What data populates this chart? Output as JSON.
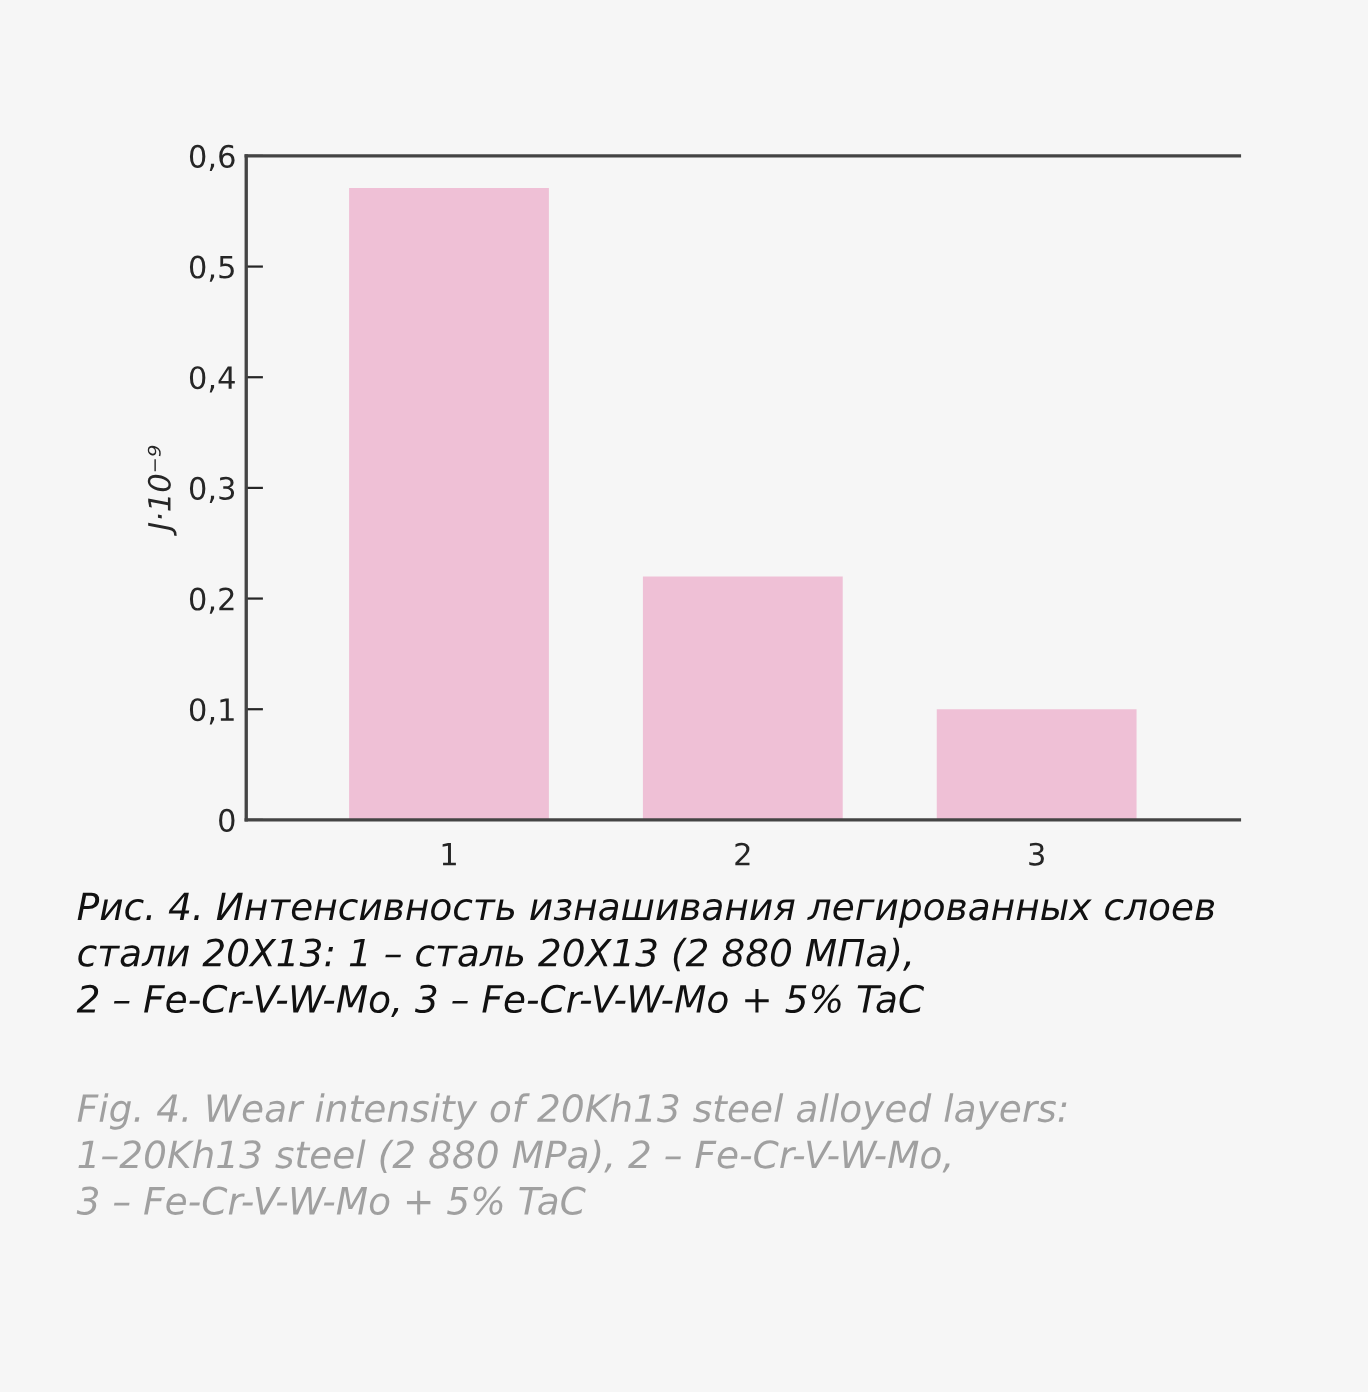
{
  "chart_data": {
    "type": "bar",
    "ylabel": "J·10⁻⁹",
    "categories": [
      "1",
      "2",
      "3"
    ],
    "values": [
      0.571,
      0.22,
      0.1
    ],
    "color": "#efc0d6",
    "ylim": [
      0,
      0.6
    ],
    "yticks": [
      0,
      {
        "value": 0.1,
        "label": "0,1"
      },
      {
        "value": 0.2,
        "label": "0,2"
      },
      {
        "value": 0.3,
        "label": "0,3"
      },
      {
        "value": 0.4,
        "label": "0,4"
      },
      {
        "value": 0.5,
        "label": "0,5"
      },
      {
        "value": 0.6,
        "label": "0,6"
      }
    ],
    "grid": false,
    "annotations": [
      "Рис. 4. Интенсивность изнашивания легированных слоев\nстали 20Х13: 1 – сталь 20Х13 (2 880 МПа),\n2 – Fe-Cr-V-W-Mo, 3 – Fe-Cr-V-W-Mo + 5% TaC",
      "Fig. 4. Wear intensity of 20Kh13 steel alloyed layers:\n1–20Kh13 steel (2 880 MPa), 2 – Fe-Cr-V-W-Mo,\n3 – Fe-Cr-V-W-Mo + 5% TaC"
    ]
  }
}
